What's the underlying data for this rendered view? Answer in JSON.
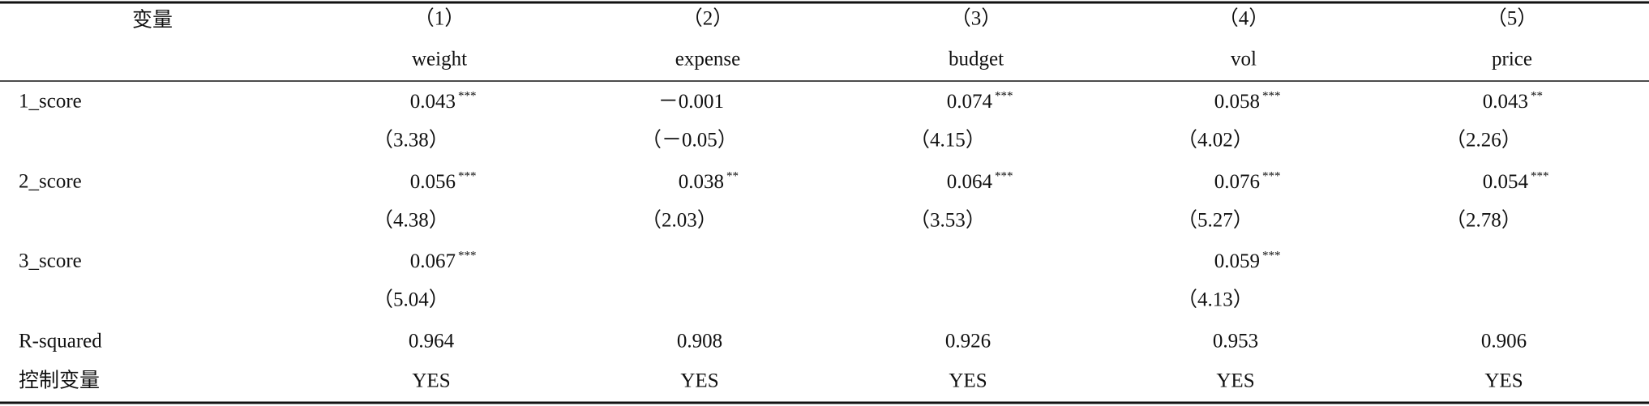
{
  "table": {
    "header": {
      "corner": "变量",
      "columns": [
        {
          "number": "（1）",
          "name": "weight"
        },
        {
          "number": "（2）",
          "name": "expense"
        },
        {
          "number": "（3）",
          "name": "budget"
        },
        {
          "number": "（4）",
          "name": "vol"
        },
        {
          "number": "（5）",
          "name": "price"
        }
      ]
    },
    "rows": [
      {
        "label": "1_score",
        "cells": [
          {
            "coef": "0.043",
            "stars": "***",
            "t": "（3.38）"
          },
          {
            "coef": "－0.001",
            "t": "（－0.05）"
          },
          {
            "coef": "0.074",
            "stars": "***",
            "t": "（4.15）"
          },
          {
            "coef": "0.058",
            "stars": "***",
            "t": "（4.02）"
          },
          {
            "coef": "0.043",
            "stars": "**",
            "t": "（2.26）"
          }
        ]
      },
      {
        "label": "2_score",
        "cells": [
          {
            "coef": "0.056",
            "stars": "***",
            "t": "（4.38）"
          },
          {
            "coef": "0.038",
            "stars": "**",
            "t": "（2.03）"
          },
          {
            "coef": "0.064",
            "stars": "***",
            "t": "（3.53）"
          },
          {
            "coef": "0.076",
            "stars": "***",
            "t": "（5.27）"
          },
          {
            "coef": "0.054",
            "stars": "***",
            "t": "（2.78）"
          }
        ]
      },
      {
        "label": "3_score",
        "cells": [
          {
            "coef": "0.067",
            "stars": "***",
            "t": "（5.04）"
          },
          null,
          null,
          {
            "coef": "0.059",
            "stars": "***",
            "t": "（4.13）"
          },
          null
        ]
      }
    ],
    "stats": [
      {
        "label": "R-squared",
        "cells": [
          "0.964",
          "0.908",
          "0.926",
          "0.953",
          "0.906"
        ]
      },
      {
        "label": "控制变量",
        "cells": [
          "YES",
          "YES",
          "YES",
          "YES",
          "YES"
        ]
      }
    ]
  }
}
